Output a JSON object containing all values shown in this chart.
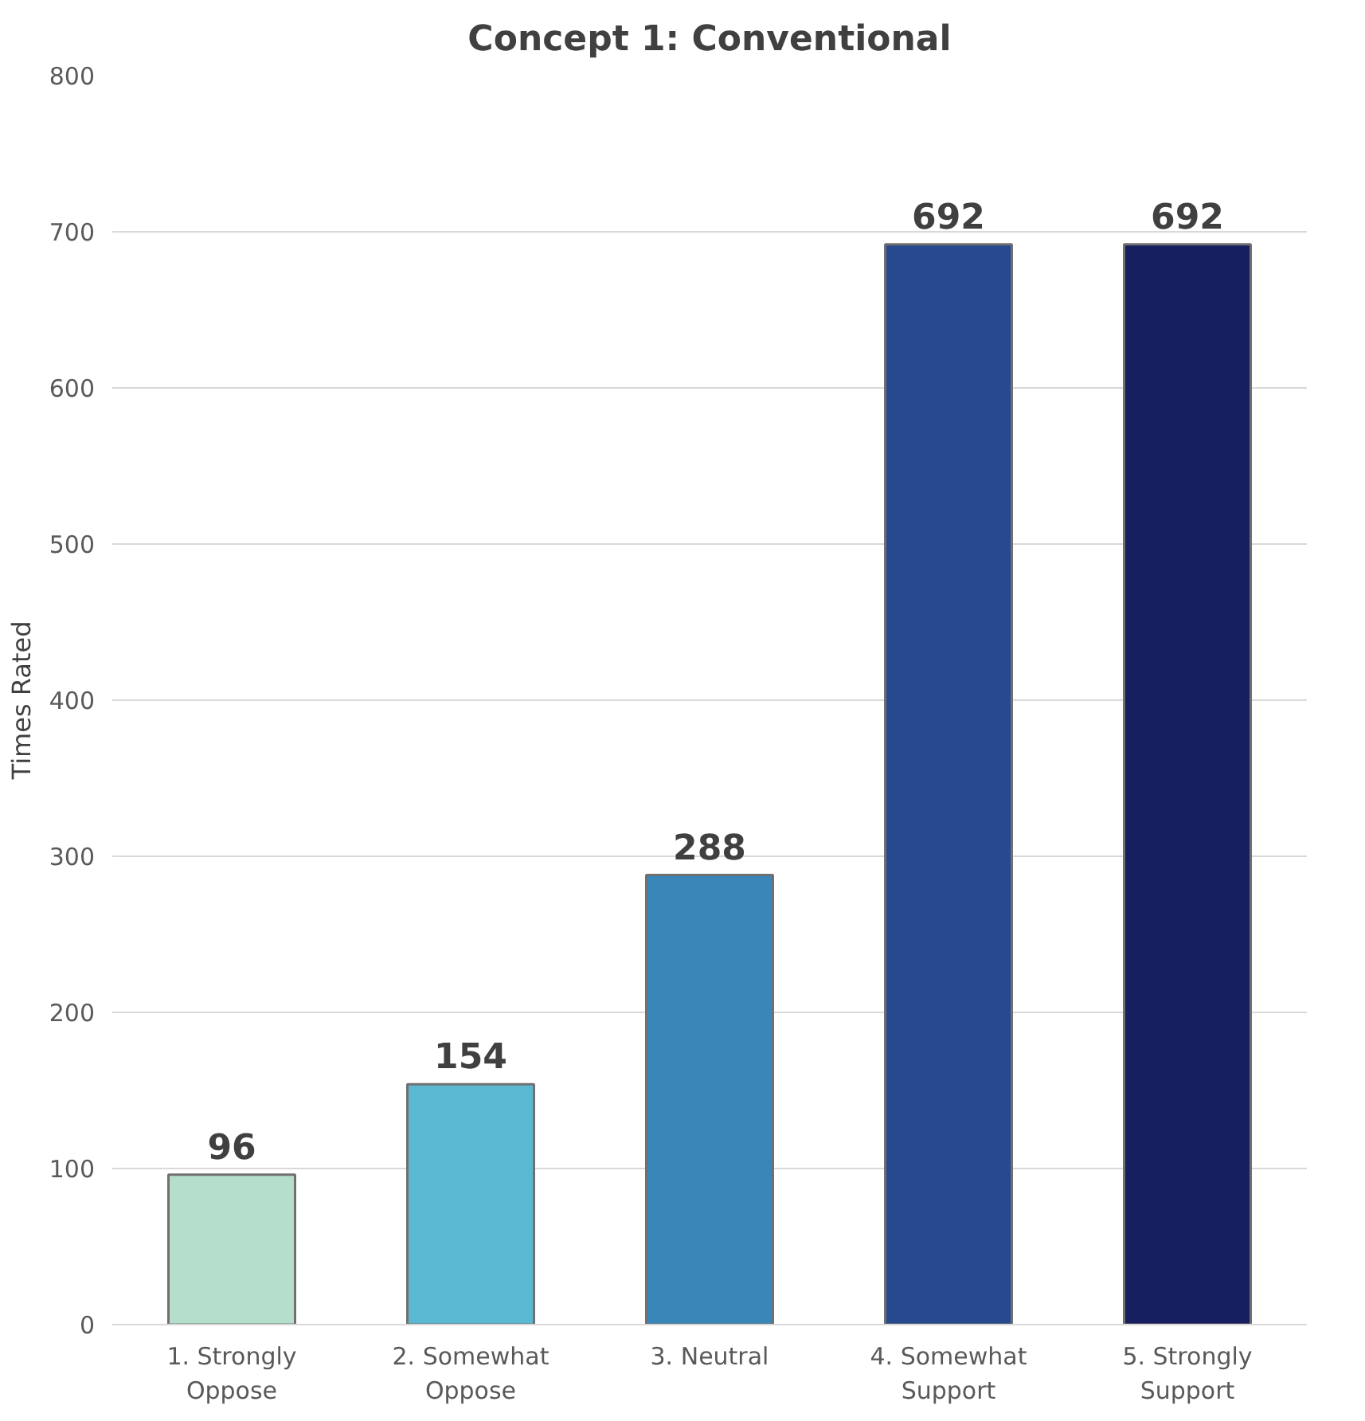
{
  "chart_data": {
    "type": "bar",
    "title": "Concept 1: Conventional",
    "ylabel": "Times Rated",
    "categories": [
      "1. Strongly Oppose",
      "2. Somewhat Oppose",
      "3. Neutral",
      "4. Somewhat Support",
      "5. Strongly Support"
    ],
    "values": [
      96,
      154,
      288,
      692,
      692
    ],
    "colors": [
      "#b5dfca",
      "#5bb8d3",
      "#3986b9",
      "#27498f",
      "#161f5f"
    ],
    "ylim": [
      0,
      800
    ],
    "yticks": [
      0,
      100,
      200,
      300,
      400,
      500,
      600,
      700,
      800
    ],
    "grid": "y",
    "data_labels": true
  }
}
